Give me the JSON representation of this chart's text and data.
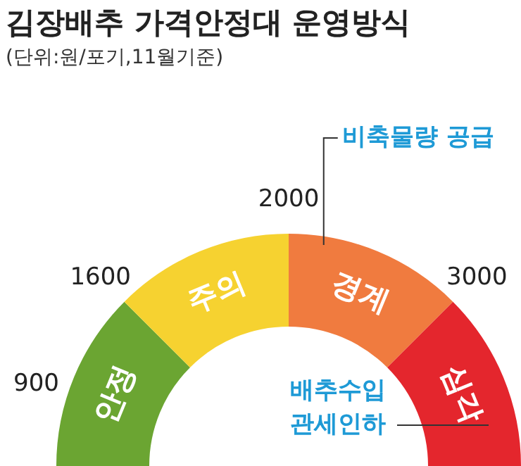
{
  "chart_data": {
    "type": "donut",
    "title": "김장배추 가격안정대 운영방식",
    "subtitle": "(단위:원/포기,11월기준)",
    "categories": [
      "안정",
      "주의",
      "경계",
      "심각"
    ],
    "values": [
      25,
      25,
      25,
      25
    ],
    "colors": [
      "#6ba532",
      "#f6d230",
      "#f07b3f",
      "#e4262d"
    ],
    "legend": false,
    "annotations": [
      "900",
      "1600",
      "2000",
      "3000",
      "비축물량 공급",
      "배추수입 관세인하"
    ]
  }
}
